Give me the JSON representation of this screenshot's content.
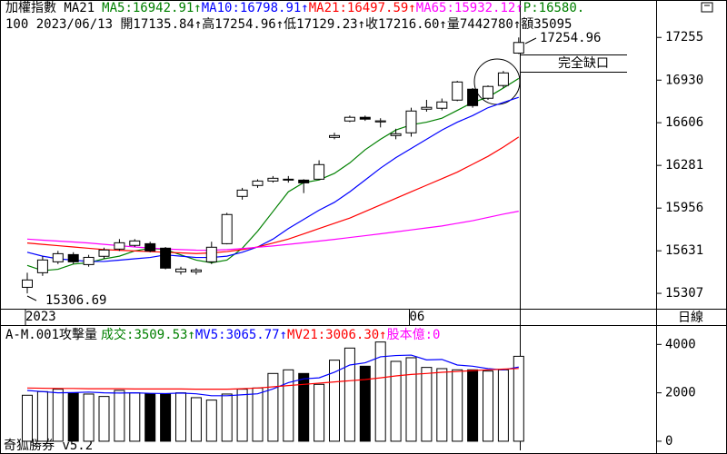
{
  "header": {
    "info": "100 2023/06/13 開17135.84↑高17254.96↑低17129.23↑收17216.60↑量7442780↑額35095",
    "period": "日線",
    "footer": "奇狐勝券 v5.2"
  },
  "chart_data": [
    {
      "type": "candlestick",
      "title": "加權指數 MA21",
      "up_color": "#ffffff",
      "down_color": "#000000",
      "categories": [
        "2023",
        null,
        null,
        null,
        null,
        null,
        null,
        null,
        null,
        null,
        null,
        null,
        null,
        null,
        null,
        null,
        null,
        null,
        null,
        null,
        null,
        null,
        null,
        null,
        null,
        "06",
        null,
        null,
        null,
        null,
        null,
        null,
        null
      ],
      "open": [
        15353,
        15464,
        15547,
        15602,
        15526,
        15589,
        15644,
        15672,
        15685,
        15651,
        15471,
        15471,
        15547,
        15685,
        16045,
        16128,
        16162,
        16169,
        16169,
        16176,
        16494,
        16619,
        16647,
        16612,
        16508,
        16529,
        16709,
        16716,
        16778,
        16861,
        16792,
        16889,
        17135.84
      ],
      "high": [
        15464,
        15590,
        15630,
        15620,
        15600,
        15655,
        15720,
        15720,
        15700,
        15660,
        15510,
        15500,
        15700,
        15920,
        16110,
        16175,
        16200,
        16200,
        16176,
        16320,
        16530,
        16660,
        16660,
        16640,
        16560,
        16720,
        16780,
        16790,
        16925,
        16870,
        16890,
        17000,
        17254.96
      ],
      "low": [
        15306.69,
        15440,
        15530,
        15530,
        15510,
        15570,
        15630,
        15660,
        15620,
        15490,
        15450,
        15450,
        15530,
        15680,
        16020,
        16110,
        16150,
        16150,
        16070,
        16170,
        16480,
        16610,
        16620,
        16570,
        16480,
        16500,
        16690,
        16700,
        16770,
        16720,
        16780,
        16870,
        17129.23
      ],
      "close": [
        15409,
        15561,
        15609,
        15547,
        15581,
        15637,
        15692,
        15706,
        15630,
        15499,
        15492,
        15485,
        15658,
        15907,
        16093,
        16162,
        16183,
        16176,
        16148,
        16287,
        16508,
        16647,
        16633,
        16620,
        16522,
        16695,
        16723,
        16764,
        16916,
        16736,
        16882,
        16985,
        17216.6
      ],
      "series": [
        {
          "name": "MA5:16942.91↑",
          "color": "#008000",
          "values": [
            15520,
            15480,
            15490,
            15530,
            15540,
            15570,
            15590,
            15630,
            15650,
            15640,
            15600,
            15560,
            15540,
            15560,
            15650,
            15780,
            15930,
            16080,
            16150,
            16170,
            16220,
            16300,
            16400,
            16480,
            16550,
            16590,
            16610,
            16640,
            16700,
            16760,
            16800,
            16870,
            16942.91
          ]
        },
        {
          "name": "MA10:16798.91↑",
          "color": "#0000ff",
          "values": [
            15620,
            15590,
            15570,
            15560,
            15550,
            15550,
            15560,
            15570,
            15580,
            15600,
            15590,
            15580,
            15580,
            15590,
            15620,
            15660,
            15720,
            15800,
            15870,
            15940,
            16000,
            16080,
            16170,
            16260,
            16340,
            16410,
            16480,
            16550,
            16610,
            16660,
            16720,
            16760,
            16798.91
          ]
        },
        {
          "name": "MA21:16497.59↑",
          "color": "#ff0000",
          "values": [
            15690,
            15680,
            15670,
            15660,
            15650,
            15640,
            15635,
            15630,
            15625,
            15620,
            15615,
            15610,
            15615,
            15625,
            15640,
            15660,
            15690,
            15720,
            15760,
            15800,
            15840,
            15880,
            15930,
            15980,
            16030,
            16080,
            16130,
            16180,
            16230,
            16290,
            16350,
            16420,
            16497.59
          ]
        },
        {
          "name": "MA65:15932.12↑",
          "color": "#ff00ff",
          "values": [
            15720,
            15712,
            15705,
            15698,
            15690,
            15680,
            15670,
            15660,
            15652,
            15645,
            15640,
            15636,
            15635,
            15640,
            15648,
            15658,
            15668,
            15680,
            15692,
            15705,
            15718,
            15732,
            15746,
            15760,
            15775,
            15790,
            15805,
            15820,
            15840,
            15860,
            15885,
            15910,
            15932.12
          ]
        }
      ],
      "extra_labels": [
        {
          "text": "P:16580.",
          "color": "#008000"
        }
      ],
      "high_label": "17254.96",
      "low_label": "15306.69",
      "gap_label": "完全缺口",
      "ylim": [
        15190,
        17540
      ],
      "yticks": [
        15307,
        15631,
        15956,
        16281,
        16606,
        16930,
        17255
      ]
    },
    {
      "type": "bar",
      "title": "A-M.001攻擊量",
      "series": [
        {
          "name": "成交:3509.53↑",
          "color": "#008000",
          "values": [
            1900,
            2050,
            2150,
            2000,
            1950,
            1850,
            2100,
            2000,
            1950,
            1950,
            2000,
            1800,
            1700,
            1950,
            2150,
            2200,
            2800,
            2950,
            2800,
            2350,
            3350,
            3850,
            3100,
            4100,
            3300,
            3450,
            3050,
            3000,
            2950,
            2950,
            2900,
            2950,
            3509.53
          ]
        },
        {
          "name": "MV5:3065.77↑",
          "color": "#0000ff",
          "values": [
            2100,
            2050,
            2000,
            2010,
            2030,
            2000,
            1990,
            2000,
            1980,
            1970,
            1990,
            1960,
            1880,
            1880,
            1920,
            1960,
            2160,
            2420,
            2580,
            2620,
            2850,
            3150,
            3240,
            3490,
            3540,
            3560,
            3360,
            3380,
            3150,
            3100,
            3000,
            2950,
            3065.77
          ]
        },
        {
          "name": "MV21:3006.30↑",
          "color": "#ff0000",
          "values": [
            2200,
            2190,
            2180,
            2180,
            2170,
            2170,
            2170,
            2160,
            2160,
            2160,
            2160,
            2150,
            2150,
            2150,
            2170,
            2200,
            2250,
            2300,
            2350,
            2400,
            2450,
            2500,
            2550,
            2620,
            2700,
            2760,
            2800,
            2850,
            2880,
            2920,
            2950,
            2980,
            3006.3
          ]
        }
      ],
      "extra_labels": [
        {
          "text": "股本億:0",
          "color": "#ff00ff"
        }
      ],
      "ylim": [
        -340,
        4650
      ],
      "yticks": [
        0,
        2000,
        4000
      ]
    }
  ]
}
